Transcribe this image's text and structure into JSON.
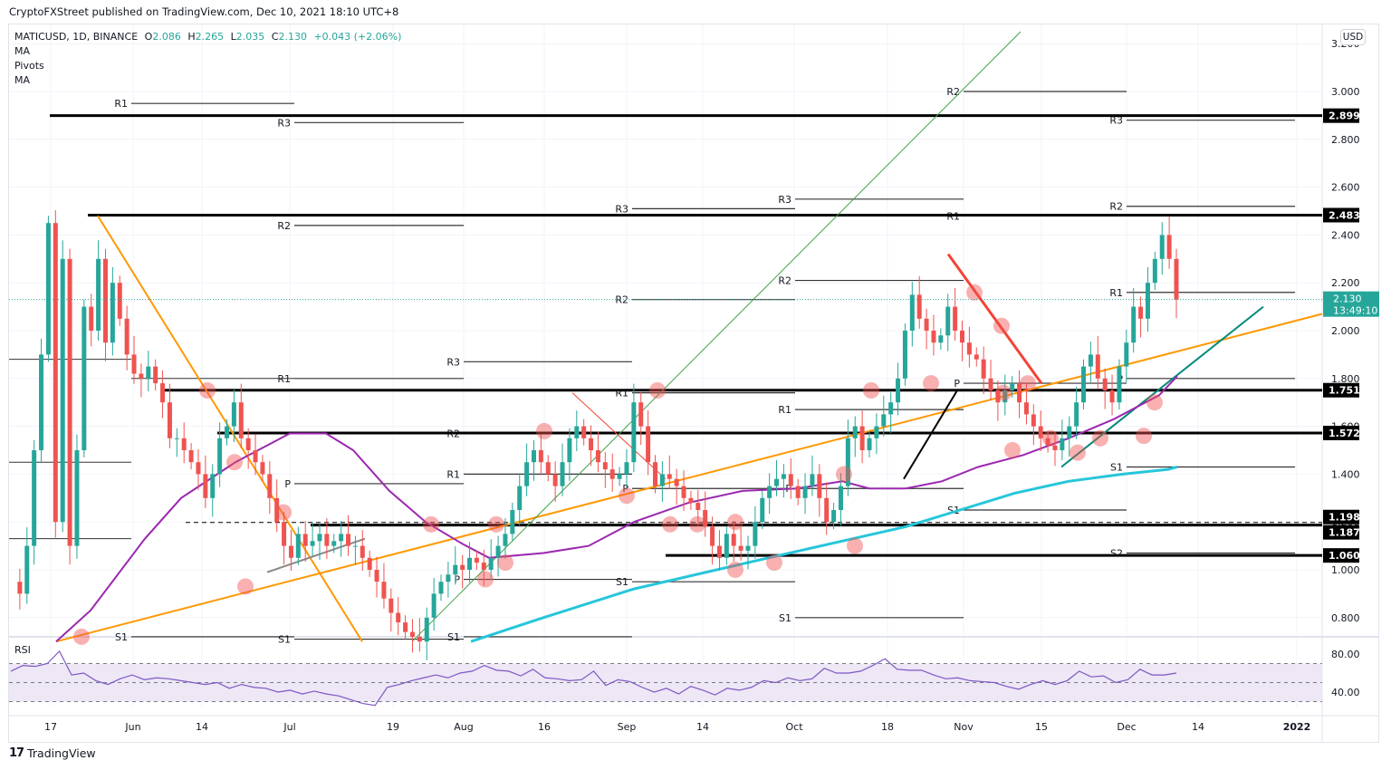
{
  "header": {
    "published": "CryptoFXStreet published on TradingView.com, Dec 10, 2021 18:10 UTC+8"
  },
  "legend": {
    "symbol": "MATICUSD, 1D, BINANCE",
    "open_label": "O",
    "open": "2.086",
    "high_label": "H",
    "high": "2.265",
    "low_label": "L",
    "low": "2.035",
    "close_label": "C",
    "close": "2.130",
    "change": "+0.043 (+2.06%)",
    "indicators": [
      "MA",
      "Pivots",
      "MA"
    ]
  },
  "price_axis": {
    "currency_button": "USD",
    "ticks": [
      "3.200",
      "3.000",
      "2.800",
      "2.600",
      "2.400",
      "2.200",
      "2.000",
      "1.800",
      "1.600",
      "1.400",
      "1.200",
      "1.000",
      "0.800"
    ],
    "last_price": "2.130",
    "countdown": "13:49:10",
    "level_labels": [
      "2.899",
      "2.483",
      "1.751",
      "1.572",
      "1.198",
      "1.187",
      "1.060"
    ]
  },
  "rsi": {
    "label": "RSI",
    "ticks": [
      "80.00",
      "40.00"
    ]
  },
  "time_axis": {
    "ticks": [
      "17",
      "Jun",
      "14",
      "Jul",
      "19",
      "Aug",
      "16",
      "Sep",
      "14",
      "Oct",
      "18",
      "Nov",
      "15",
      "Dec",
      "14",
      "2022"
    ]
  },
  "footer": {
    "logo": "17",
    "brand": "TradingView"
  },
  "colors": {
    "up": "#26a69a",
    "down": "#ef5350",
    "ma_short": "#9c27b0",
    "ma_long": "#26c6da",
    "trendline_orange": "#ff9800",
    "trendline_green": "#43a047",
    "trendline_red": "#f44336",
    "rsi_line": "#7e57c2",
    "rsi_band": "#ede7f6",
    "level": "#000000",
    "last_price_bg": "#26a69a"
  },
  "chart_data": [
    {
      "type": "candlestick",
      "title": "MATICUSD, 1D, BINANCE",
      "xlabel": "",
      "ylabel": "USD",
      "ylim": [
        0.7,
        3.25
      ],
      "x_ticks": [
        "17",
        "Jun",
        "14",
        "Jul",
        "19",
        "Aug",
        "16",
        "Sep",
        "14",
        "Oct",
        "18",
        "Nov",
        "15",
        "Dec",
        "14",
        "2022"
      ],
      "last": {
        "open": 2.086,
        "high": 2.265,
        "low": 2.035,
        "close": 2.13,
        "change": 0.043,
        "change_pct": 2.06
      },
      "horizontal_levels": [
        2.899,
        2.483,
        1.751,
        1.572,
        1.198,
        1.187,
        1.06
      ],
      "pivot_labels": [
        {
          "label": "R1",
          "value": 2.95
        },
        {
          "label": "R3",
          "value": 2.87
        },
        {
          "label": "R2",
          "value": 2.44
        },
        {
          "label": "R1",
          "value": 1.8
        },
        {
          "label": "P",
          "value": 1.36
        },
        {
          "label": "S1",
          "value": 0.72
        },
        {
          "label": "R3",
          "value": 1.87
        },
        {
          "label": "R2",
          "value": 1.57
        },
        {
          "label": "R1",
          "value": 1.4
        },
        {
          "label": "P",
          "value": 0.96
        },
        {
          "label": "S1",
          "value": 0.72
        },
        {
          "label": "R3",
          "value": 2.51
        },
        {
          "label": "R2",
          "value": 2.13
        },
        {
          "label": "R1",
          "value": 1.74
        },
        {
          "label": "P",
          "value": 1.34
        },
        {
          "label": "S1",
          "value": 0.95
        },
        {
          "label": "R3",
          "value": 2.55
        },
        {
          "label": "R2",
          "value": 2.21
        },
        {
          "label": "R1",
          "value": 1.67
        },
        {
          "label": "P",
          "value": 1.34
        },
        {
          "label": "S1",
          "value": 0.8
        },
        {
          "label": "R2",
          "value": 3.0
        },
        {
          "label": "R1",
          "value": 2.48
        },
        {
          "label": "P",
          "value": 1.78
        },
        {
          "label": "S1",
          "value": 1.25
        },
        {
          "label": "R3",
          "value": 2.88
        },
        {
          "label": "R2",
          "value": 2.52
        },
        {
          "label": "R1",
          "value": 2.16
        },
        {
          "label": "P",
          "value": 1.8
        },
        {
          "label": "S1",
          "value": 1.43
        },
        {
          "label": "S2",
          "value": 1.07
        }
      ],
      "series": [
        {
          "name": "MA (short, purple)",
          "values_approx": [
            0.72,
            1.0,
            1.4,
            1.45,
            1.18,
            1.06,
            1.12,
            1.35,
            1.33,
            1.37,
            1.38,
            1.35,
            1.52,
            1.7
          ]
        },
        {
          "name": "MA (long, cyan)",
          "values_approx": [
            0.7,
            0.85,
            1.0,
            1.1,
            1.25,
            1.4,
            1.43
          ]
        }
      ]
    },
    {
      "type": "line",
      "title": "RSI",
      "ylim": [
        20,
        90
      ],
      "y_ticks": [
        80,
        40
      ],
      "bands": [
        70,
        50,
        30
      ],
      "values_approx": [
        62,
        68,
        67,
        70,
        83,
        58,
        60,
        52,
        48,
        54,
        58,
        53,
        55,
        54,
        52,
        50,
        48,
        50,
        44,
        48,
        45,
        44,
        40,
        42,
        38,
        41,
        38,
        36,
        32,
        28,
        26,
        45,
        48,
        52,
        55,
        58,
        55,
        60,
        62,
        68,
        63,
        62,
        57,
        64,
        55,
        54,
        52,
        53,
        62,
        47,
        53,
        51,
        45,
        40,
        44,
        38,
        46,
        42,
        37,
        44,
        42,
        45,
        52,
        50,
        55,
        52,
        54,
        65,
        60,
        60,
        62,
        68,
        75,
        64,
        63,
        63,
        58,
        54,
        55,
        52,
        51,
        50,
        46,
        43,
        48,
        52,
        48,
        52,
        62,
        56,
        57,
        50,
        53,
        64,
        58,
        58,
        60
      ]
    }
  ]
}
